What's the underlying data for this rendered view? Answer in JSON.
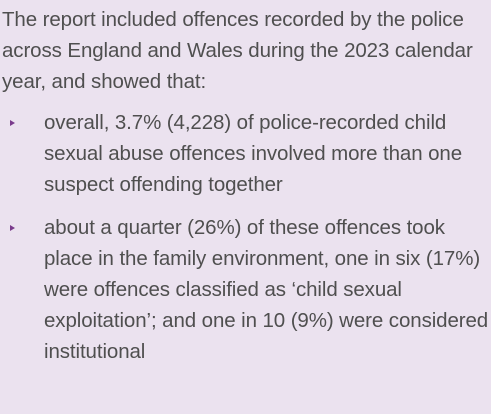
{
  "intro": "The report included offences recorded by the police across England and Wales during the 2023 calendar year, and showed that:",
  "bullets": [
    "overall, 3.7% (4,228) of police-recorded child sexual abuse offences involved more than one suspect offending together",
    "about a quarter (26%) of these offences took place in the family environment, one in six (17%) were offences classified as ‘child sexual exploitation’; and one in 10 (9%) were considered institutional"
  ],
  "colors": {
    "background": "#ebe2ef",
    "text": "#4f4f4f",
    "bullet_marker": "#7a3b8c"
  },
  "icons": {
    "bullet_marker": "triangle-bullet-icon"
  }
}
